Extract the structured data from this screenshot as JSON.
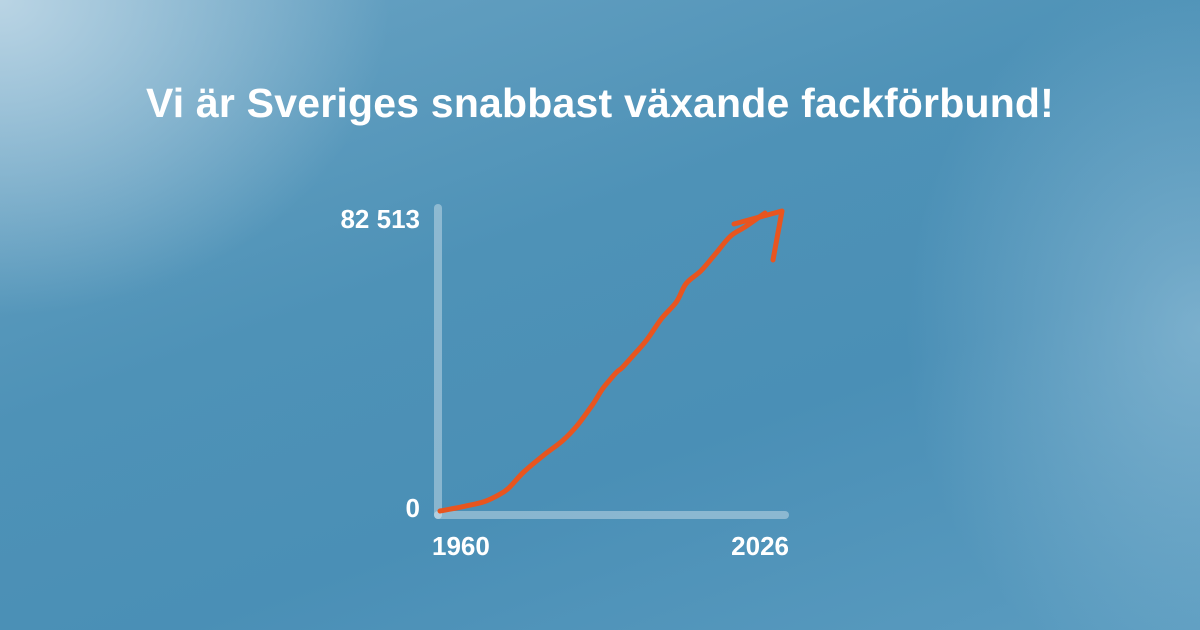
{
  "page": {
    "title": "Vi är Sveriges snabbast växande fackförbund!"
  },
  "colors": {
    "line": "#e8551f",
    "axis": "rgba(255,255,255,0.35)",
    "text": "#ffffff"
  },
  "chart_data": {
    "type": "line",
    "title": "",
    "xlabel": "",
    "ylabel": "",
    "xlim": [
      1960,
      2026
    ],
    "ylim": [
      0,
      82513
    ],
    "x_tick_labels": [
      "1960",
      "2026"
    ],
    "y_tick_labels": [
      "0",
      "82 513"
    ],
    "arrow_at_end": true,
    "series": [
      {
        "x": [
          1960,
          1965,
          1969,
          1972,
          1974,
          1977,
          1981,
          1985,
          1988,
          1991,
          1993,
          1995,
          1996,
          1997,
          1999,
          2002,
          2005,
          2008,
          2010,
          2013,
          2016,
          2019,
          2022,
          2026
        ],
        "values": [
          0,
          1300,
          2600,
          4500,
          6400,
          10800,
          15400,
          19600,
          23900,
          29500,
          33800,
          37100,
          38600,
          39700,
          42700,
          47400,
          53300,
          57900,
          63000,
          66500,
          71300,
          76100,
          78700,
          82513
        ]
      }
    ]
  }
}
